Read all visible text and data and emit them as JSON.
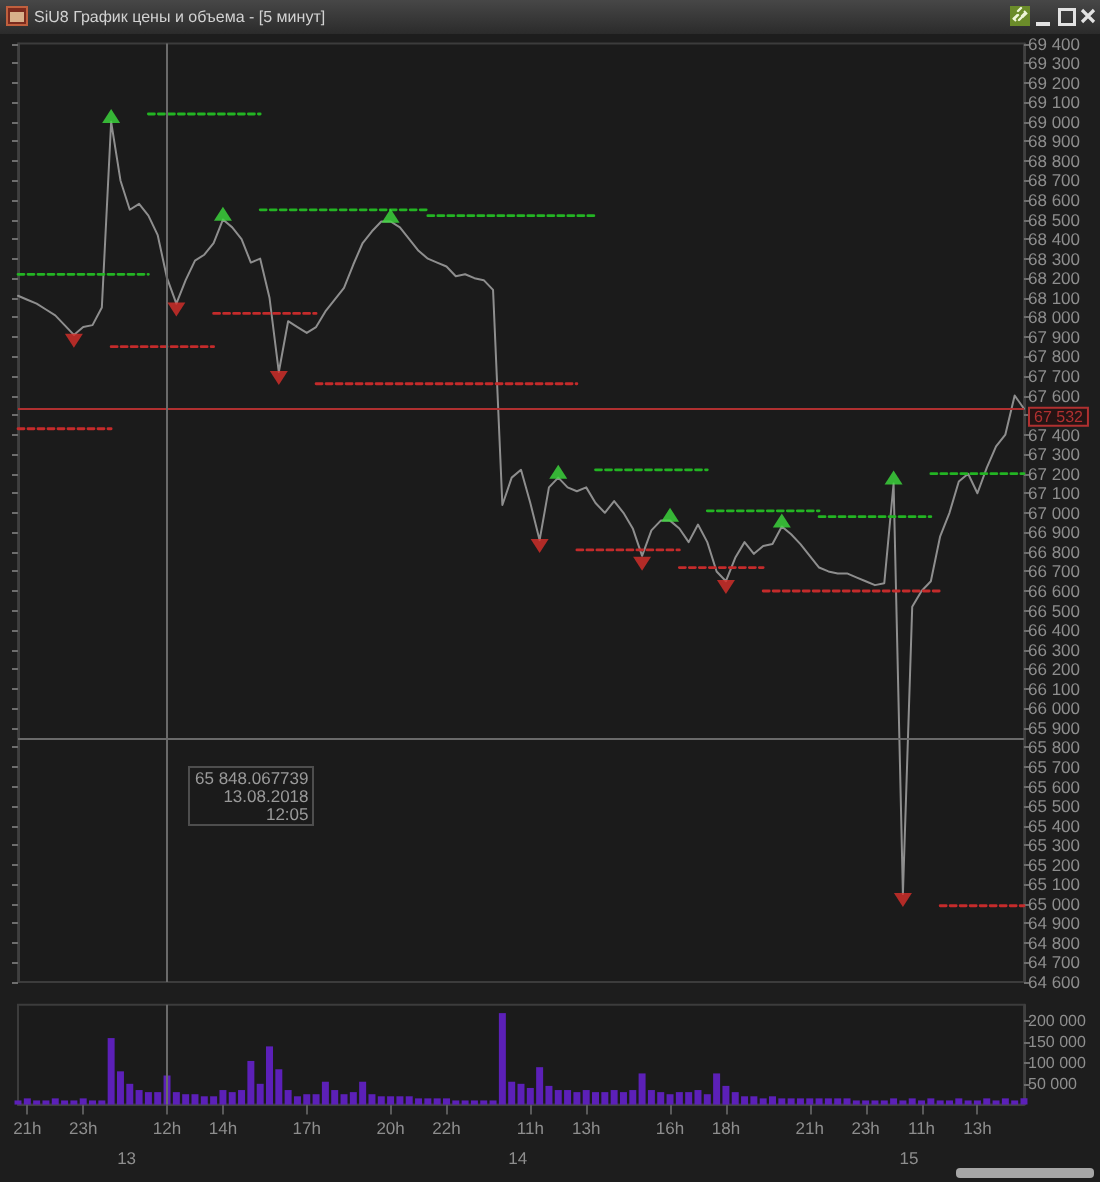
{
  "chart_data": [
    {
      "type": "line",
      "title": "SiU8 График цены и объема - [5 минут]",
      "categories": [
        null,
        "21h",
        null,
        null,
        null,
        null,
        null,
        "23h",
        null,
        null,
        null,
        null,
        null,
        null,
        null,
        null,
        "12h",
        null,
        null,
        null,
        null,
        null,
        "14h",
        null,
        null,
        null,
        null,
        null,
        null,
        null,
        null,
        "17h",
        null,
        null,
        null,
        null,
        null,
        null,
        null,
        null,
        "20h",
        null,
        null,
        null,
        null,
        null,
        "22h",
        null,
        null,
        null,
        null,
        null,
        null,
        null,
        null,
        "11h",
        null,
        null,
        null,
        null,
        null,
        "13h",
        null,
        null,
        null,
        null,
        null,
        null,
        null,
        null,
        "16h",
        null,
        null,
        null,
        null,
        null,
        "18h",
        null,
        null,
        null,
        null,
        null,
        null,
        null,
        null,
        "21h",
        null,
        null,
        null,
        null,
        null,
        "23h",
        null,
        null,
        null,
        null,
        null,
        "11h",
        null,
        null,
        null,
        null,
        null,
        "13h",
        null,
        null,
        null,
        null,
        null
      ],
      "series": [
        {
          "color": "#8e8e8e",
          "values": [
            68110,
            68090,
            68070,
            68040,
            68010,
            67960,
            67910,
            67950,
            67960,
            68050,
            69000,
            68700,
            68550,
            68580,
            68520,
            68420,
            68200,
            68070,
            68190,
            68290,
            68320,
            68380,
            68500,
            68460,
            68400,
            68280,
            68300,
            68100,
            67720,
            67980,
            67950,
            67920,
            67950,
            68030,
            68090,
            68150,
            68270,
            68380,
            68440,
            68490,
            68490,
            68460,
            68400,
            68340,
            68300,
            68280,
            68260,
            68210,
            68220,
            68200,
            68190,
            68140,
            67040,
            67180,
            67220,
            67050,
            66860,
            67130,
            67180,
            67130,
            67110,
            67130,
            67050,
            67000,
            67060,
            67000,
            66920,
            66780,
            66910,
            66960,
            66960,
            66920,
            66850,
            66940,
            66850,
            66700,
            66650,
            66770,
            66850,
            66790,
            66830,
            66840,
            66930,
            66890,
            66840,
            66780,
            66720,
            66700,
            66690,
            66690,
            66670,
            66650,
            66630,
            66640,
            67150,
            65050,
            66520,
            66600,
            66650,
            66880,
            67000,
            67160,
            67200,
            67100,
            67230,
            67340,
            67400,
            67600,
            67532
          ]
        },
        {
          "type": "line",
          "color": "#23b423",
          "line_style": "dashed",
          "values": [
            68220,
            68220,
            68220,
            68220,
            68220,
            68220,
            68220,
            68220,
            68220,
            68220,
            68220,
            68220,
            68220,
            68220,
            68220,
            null,
            null,
            null,
            null,
            null,
            null,
            null,
            null,
            null,
            null,
            null,
            68550,
            68550,
            68550,
            68550,
            68550,
            68550,
            68550,
            68550,
            68550,
            68550,
            68550,
            68550,
            68550,
            68550,
            68550,
            68550,
            68550,
            68550,
            68550,
            null,
            null,
            null,
            null,
            null,
            null,
            null,
            null,
            null,
            null,
            null,
            null,
            null,
            null,
            null,
            null,
            null,
            67220,
            67220,
            67220,
            67220,
            67220,
            67220,
            67220,
            67220,
            67220,
            67220,
            67220,
            67220,
            67220,
            null,
            null,
            null,
            null,
            null,
            null,
            null,
            null,
            null,
            null,
            null,
            66980,
            66980,
            66980,
            66980,
            66980,
            66980,
            66980,
            66980,
            66980,
            66980,
            66980,
            66980,
            66980,
            null,
            null,
            null,
            null,
            null,
            null,
            null,
            null,
            null,
            null
          ]
        },
        {
          "type": "line",
          "color": "#23b423",
          "line_style": "dashed",
          "values": [
            null,
            null,
            null,
            null,
            null,
            null,
            null,
            null,
            null,
            null,
            null,
            null,
            null,
            null,
            69040,
            69040,
            69040,
            69040,
            69040,
            69040,
            69040,
            69040,
            69040,
            69040,
            69040,
            69040,
            69040,
            null,
            null,
            null,
            null,
            null,
            null,
            null,
            null,
            null,
            null,
            null,
            null,
            null,
            null,
            null,
            null,
            null,
            68520,
            68520,
            68520,
            68520,
            68520,
            68520,
            68520,
            68520,
            68520,
            68520,
            68520,
            68520,
            68520,
            68520,
            68520,
            68520,
            68520,
            68520,
            68520,
            null,
            null,
            null,
            null,
            null,
            null,
            null,
            null,
            null,
            null,
            null,
            67010,
            67010,
            67010,
            67010,
            67010,
            67010,
            67010,
            67010,
            67010,
            67010,
            67010,
            67010,
            67010,
            null,
            null,
            null,
            null,
            null,
            null,
            null,
            null,
            null,
            null,
            null,
            67200,
            67200,
            67200,
            67200,
            67200,
            67200,
            67200,
            67200,
            67200,
            67200,
            67200
          ]
        },
        {
          "type": "line",
          "color": "#c42b2b",
          "line_style": "dashed",
          "values": [
            67430,
            67430,
            67430,
            67430,
            67430,
            67430,
            67430,
            67430,
            67430,
            67430,
            67430,
            null,
            null,
            null,
            null,
            null,
            null,
            null,
            null,
            null,
            null,
            68020,
            68020,
            68020,
            68020,
            68020,
            68020,
            68020,
            68020,
            68020,
            68020,
            68020,
            68020,
            null,
            null,
            null,
            null,
            null,
            null,
            null,
            null,
            null,
            null,
            null,
            null,
            null,
            null,
            null,
            null,
            null,
            null,
            null,
            null,
            null,
            null,
            null,
            null,
            null,
            null,
            null,
            66810,
            66810,
            66810,
            66810,
            66810,
            66810,
            66810,
            66810,
            66810,
            66810,
            66810,
            66810,
            null,
            null,
            null,
            null,
            null,
            null,
            null,
            null,
            66600,
            66600,
            66600,
            66600,
            66600,
            66600,
            66600,
            66600,
            66600,
            66600,
            66600,
            66600,
            66600,
            66600,
            66600,
            66600,
            66600,
            66600,
            66600,
            66600,
            null,
            null,
            null,
            null,
            null,
            null,
            null,
            null,
            null
          ]
        },
        {
          "type": "line",
          "color": "#c42b2b",
          "line_style": "dashed",
          "values": [
            null,
            null,
            null,
            null,
            null,
            null,
            null,
            null,
            null,
            null,
            67850,
            67850,
            67850,
            67850,
            67850,
            67850,
            67850,
            67850,
            67850,
            67850,
            67850,
            67850,
            null,
            null,
            null,
            null,
            null,
            null,
            null,
            null,
            null,
            null,
            67660,
            67660,
            67660,
            67660,
            67660,
            67660,
            67660,
            67660,
            67660,
            67660,
            67660,
            67660,
            67660,
            67660,
            67660,
            67660,
            67660,
            67660,
            67660,
            67660,
            67660,
            67660,
            67660,
            67660,
            67660,
            67660,
            67660,
            67660,
            67660,
            null,
            null,
            null,
            null,
            null,
            null,
            null,
            null,
            null,
            null,
            66720,
            66720,
            66720,
            66720,
            66720,
            66720,
            66720,
            66720,
            66720,
            66720,
            null,
            null,
            null,
            null,
            null,
            null,
            null,
            null,
            null,
            null,
            null,
            null,
            null,
            null,
            null,
            null,
            null,
            null,
            64990,
            64990,
            64990,
            64990,
            64990,
            64990,
            64990,
            64990,
            64990,
            64990
          ]
        },
        {
          "type": "scatter",
          "color": "#3ddc3d",
          "marker": "triangle",
          "values": [
            null,
            null,
            null,
            null,
            null,
            null,
            null,
            null,
            null,
            null,
            69030,
            null,
            null,
            null,
            null,
            null,
            null,
            null,
            null,
            null,
            null,
            null,
            68530,
            null,
            null,
            null,
            null,
            null,
            null,
            null,
            null,
            null,
            null,
            null,
            null,
            null,
            null,
            null,
            null,
            null,
            68520,
            null,
            null,
            null,
            null,
            null,
            null,
            null,
            null,
            null,
            null,
            null,
            null,
            null,
            null,
            null,
            null,
            null,
            67210,
            null,
            null,
            null,
            null,
            null,
            null,
            null,
            null,
            null,
            null,
            null,
            66990,
            null,
            null,
            null,
            null,
            null,
            null,
            null,
            null,
            null,
            null,
            null,
            66960,
            null,
            null,
            null,
            null,
            null,
            null,
            null,
            null,
            null,
            null,
            null,
            67180,
            null,
            null,
            null,
            null,
            null,
            null,
            null,
            null,
            null,
            null,
            null,
            null,
            null,
            null
          ]
        },
        {
          "type": "scatter",
          "color": "#d8302a",
          "marker": "triangle-down",
          "values": [
            null,
            null,
            null,
            null,
            null,
            null,
            67880,
            null,
            null,
            null,
            null,
            null,
            null,
            null,
            null,
            null,
            null,
            68040,
            null,
            null,
            null,
            null,
            null,
            null,
            null,
            null,
            null,
            null,
            67690,
            null,
            null,
            null,
            null,
            null,
            null,
            null,
            null,
            null,
            null,
            null,
            null,
            null,
            null,
            null,
            null,
            null,
            null,
            null,
            null,
            null,
            null,
            null,
            null,
            null,
            null,
            null,
            66830,
            null,
            null,
            null,
            null,
            null,
            null,
            null,
            null,
            null,
            null,
            66740,
            null,
            null,
            null,
            null,
            null,
            null,
            null,
            null,
            66620,
            null,
            null,
            null,
            null,
            null,
            null,
            null,
            null,
            null,
            null,
            null,
            null,
            null,
            null,
            null,
            null,
            null,
            null,
            65020,
            null,
            null,
            null,
            null,
            null,
            null,
            null,
            null,
            null,
            null,
            null,
            null,
            null
          ]
        }
      ],
      "ylim": [
        64600,
        69400
      ],
      "yticks": [
        {
          "value": 64600,
          "label": "64 600"
        },
        {
          "value": 64700,
          "label": "64 700"
        },
        {
          "value": 64800,
          "label": "64 800"
        },
        {
          "value": 64900,
          "label": "64 900"
        },
        {
          "value": 65000,
          "label": "65 000"
        },
        {
          "value": 65100,
          "label": "65 100"
        },
        {
          "value": 65200,
          "label": "65 200"
        },
        {
          "value": 65300,
          "label": "65 300"
        },
        {
          "value": 65400,
          "label": "65 400"
        },
        {
          "value": 65500,
          "label": "65 500"
        },
        {
          "value": 65600,
          "label": "65 600"
        },
        {
          "value": 65700,
          "label": "65 700"
        },
        {
          "value": 65800,
          "label": "65 800"
        },
        {
          "value": 65900,
          "label": "65 900"
        },
        {
          "value": 66000,
          "label": "66 000"
        },
        {
          "value": 66100,
          "label": "66 100"
        },
        {
          "value": 66200,
          "label": "66 200"
        },
        {
          "value": 66300,
          "label": "66 300"
        },
        {
          "value": 66400,
          "label": "66 400"
        },
        {
          "value": 66500,
          "label": "66 500"
        },
        {
          "value": 66600,
          "label": "66 600"
        },
        {
          "value": 66700,
          "label": "66 700"
        },
        {
          "value": 66800,
          "label": "66 800"
        },
        {
          "value": 66900,
          "label": "66 900"
        },
        {
          "value": 67000,
          "label": "67 000"
        },
        {
          "value": 67100,
          "label": "67 100"
        },
        {
          "value": 67200,
          "label": "67 200"
        },
        {
          "value": 67300,
          "label": "67 300"
        },
        {
          "value": 67400,
          "label": "67 400"
        },
        {
          "value": 67500,
          "label": null
        },
        {
          "value": 67600,
          "label": "67 600"
        },
        {
          "value": 67700,
          "label": "67 700"
        },
        {
          "value": 67800,
          "label": "67 800"
        },
        {
          "value": 67900,
          "label": "67 900"
        },
        {
          "value": 68000,
          "label": "68 000"
        },
        {
          "value": 68100,
          "label": "68 100"
        },
        {
          "value": 68200,
          "label": "68 200"
        },
        {
          "value": 68300,
          "label": "68 300"
        },
        {
          "value": 68400,
          "label": "68 400"
        },
        {
          "value": 68500,
          "label": "68 500"
        },
        {
          "value": 68600,
          "label": "68 600"
        },
        {
          "value": 68700,
          "label": "68 700"
        },
        {
          "value": 68800,
          "label": "68 800"
        },
        {
          "value": 68900,
          "label": "68 900"
        },
        {
          "value": 69000,
          "label": "69 000"
        },
        {
          "value": 69100,
          "label": "69 100"
        },
        {
          "value": 69200,
          "label": "69 200"
        },
        {
          "value": 69300,
          "label": "69 300"
        },
        {
          "value": 69400,
          "label": "69 400"
        }
      ],
      "tick_labels": "y",
      "marker": "none",
      "ref_lines": [
        {
          "axis": "y",
          "value": 67532,
          "label": "67 532",
          "color": "#b03030"
        },
        {
          "axis": "y",
          "value": 65848.067739,
          "color": "#6a6a6a"
        },
        {
          "axis": "x",
          "value": "12h",
          "color": "#6a6a6a"
        }
      ],
      "annotations": [
        {
          "text": "65 848.067739\n13.08.2018\n12:05",
          "x": "12h",
          "y": 65848.067739
        }
      ]
    },
    {
      "type": "bar",
      "categories": [
        null,
        "21h",
        null,
        null,
        null,
        null,
        null,
        "23h",
        null,
        null,
        null,
        null,
        null,
        null,
        null,
        null,
        "12h",
        null,
        null,
        null,
        null,
        null,
        "14h",
        null,
        null,
        null,
        null,
        null,
        null,
        null,
        null,
        "17h",
        null,
        null,
        null,
        null,
        null,
        null,
        null,
        null,
        "20h",
        null,
        null,
        null,
        null,
        null,
        "22h",
        null,
        null,
        null,
        null,
        null,
        null,
        null,
        null,
        "11h",
        null,
        null,
        null,
        null,
        null,
        "13h",
        null,
        null,
        null,
        null,
        null,
        null,
        null,
        null,
        "16h",
        null,
        null,
        null,
        null,
        null,
        "18h",
        null,
        null,
        null,
        null,
        null,
        null,
        null,
        null,
        "21h",
        null,
        null,
        null,
        null,
        null,
        "23h",
        null,
        null,
        null,
        null,
        null,
        "11h",
        null,
        null,
        null,
        null,
        null,
        "13h",
        null,
        null,
        null,
        null,
        null
      ],
      "values": [
        10000,
        15000,
        10000,
        10000,
        15000,
        10000,
        10000,
        15000,
        10000,
        10000,
        160000,
        80000,
        50000,
        35000,
        30000,
        30000,
        70000,
        30000,
        25000,
        25000,
        20000,
        20000,
        35000,
        30000,
        35000,
        105000,
        50000,
        140000,
        85000,
        35000,
        20000,
        25000,
        25000,
        55000,
        35000,
        25000,
        30000,
        55000,
        25000,
        20000,
        20000,
        20000,
        20000,
        15000,
        15000,
        15000,
        15000,
        10000,
        10000,
        10000,
        10000,
        10000,
        220000,
        55000,
        50000,
        40000,
        90000,
        45000,
        35000,
        35000,
        30000,
        35000,
        30000,
        30000,
        35000,
        30000,
        35000,
        75000,
        35000,
        30000,
        25000,
        30000,
        30000,
        35000,
        25000,
        75000,
        45000,
        30000,
        20000,
        20000,
        15000,
        20000,
        15000,
        15000,
        15000,
        15000,
        15000,
        15000,
        15000,
        15000,
        10000,
        10000,
        10000,
        10000,
        15000,
        10000,
        15000,
        10000,
        15000,
        10000,
        10000,
        15000,
        10000,
        10000,
        15000,
        10000,
        15000,
        10000,
        15000
      ],
      "color": "#5c20b8",
      "ylim": [
        0,
        240000
      ],
      "yticks": [
        {
          "value": 50000,
          "label": "50 000"
        },
        {
          "value": 100000,
          "label": "100 000"
        },
        {
          "value": 150000,
          "label": "150 000"
        },
        {
          "value": 200000,
          "label": "200 000"
        }
      ],
      "ref_lines": [
        {
          "axis": "x",
          "value": "12h",
          "color": "#6a6a6a"
        }
      ],
      "annotations": [
        "13",
        "14",
        "15"
      ]
    }
  ]
}
